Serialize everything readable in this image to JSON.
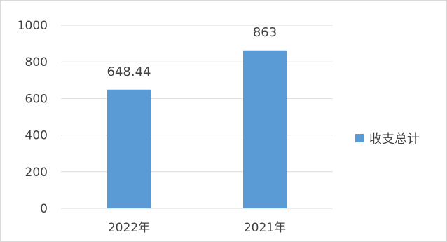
{
  "chart_data": {
    "type": "bar",
    "categories": [
      "2022年",
      "2021年"
    ],
    "series": [
      {
        "name": "收支总计",
        "values": [
          648.44,
          863
        ],
        "data_labels": [
          "648.44",
          "863"
        ],
        "color": "#5b9bd5"
      }
    ],
    "ylim": [
      0,
      1000
    ],
    "yticks": [
      0,
      200,
      400,
      600,
      800,
      1000
    ],
    "grid": true,
    "legend_position": "right",
    "title": "",
    "xlabel": "",
    "ylabel": ""
  }
}
